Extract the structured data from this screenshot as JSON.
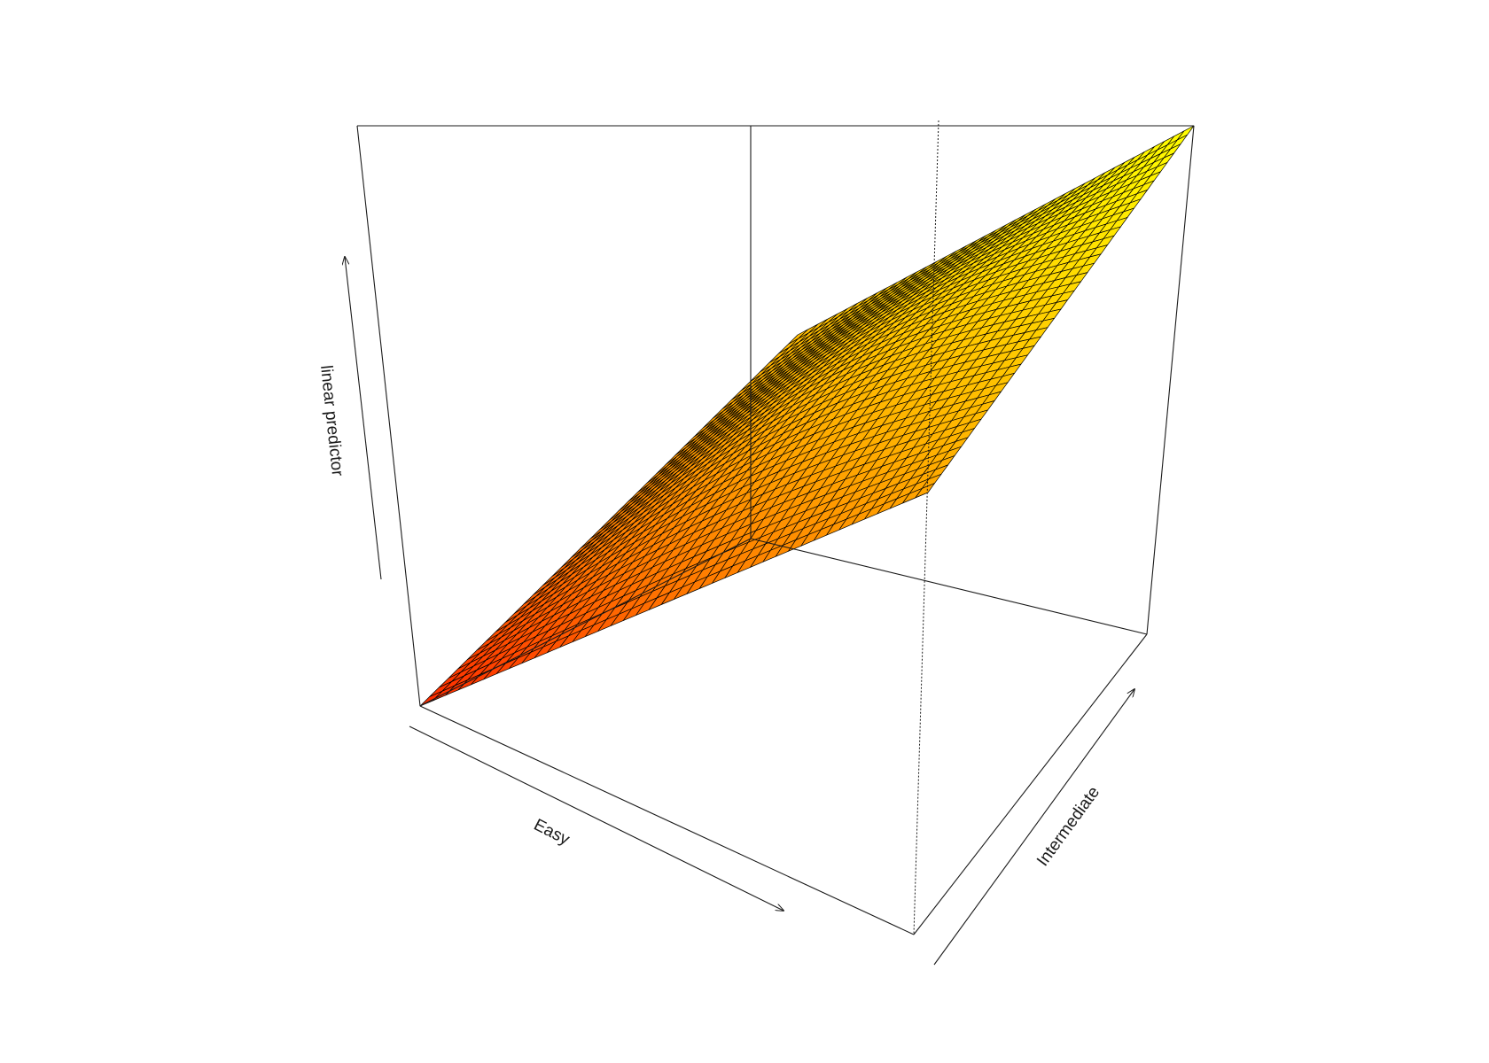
{
  "chart_data": {
    "type": "surface",
    "title": "",
    "xlabel": "Easy",
    "ylabel": "Intermediate",
    "zlabel": "linear predictor",
    "grid_x": 40,
    "grid_y": 40,
    "colormap": [
      "#ff2a00",
      "#ff7a00",
      "#ffb000",
      "#ffd800",
      "#ffff00"
    ],
    "surface_description": "Near-planar surface increasing along both Easy and Intermediate, with slight curvature; lowest at Easy=min/Intermediate=min, highest at Easy=max/Intermediate=max",
    "corner_values": {
      "low_low": 0.0,
      "low_high": 0.57,
      "high_low": 0.45,
      "high_high": 1.0
    },
    "box": true,
    "ticks": false
  }
}
